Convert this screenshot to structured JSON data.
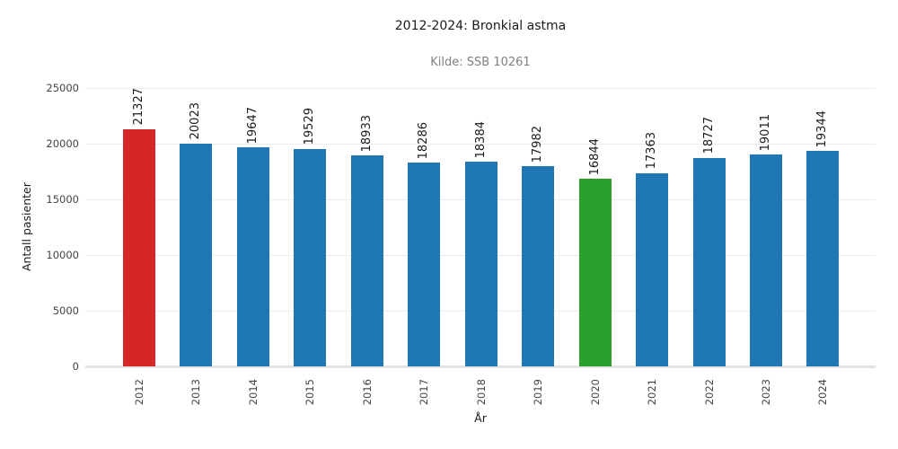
{
  "chart_data": {
    "type": "bar",
    "title": "2012-2024: Bronkial astma",
    "subtitle": "Kilde: SSB 10261",
    "xlabel": "År",
    "ylabel": "Antall pasienter",
    "categories": [
      "2012",
      "2013",
      "2014",
      "2015",
      "2016",
      "2017",
      "2018",
      "2019",
      "2020",
      "2021",
      "2022",
      "2023",
      "2024"
    ],
    "values": [
      21327,
      20023,
      19647,
      19529,
      18933,
      18286,
      18384,
      17982,
      16844,
      17363,
      18727,
      19011,
      19344
    ],
    "bar_colors": [
      "#d62728",
      "#1f77b4",
      "#1f77b4",
      "#1f77b4",
      "#1f77b4",
      "#1f77b4",
      "#1f77b4",
      "#1f77b4",
      "#2ca02c",
      "#1f77b4",
      "#1f77b4",
      "#1f77b4",
      "#1f77b4"
    ],
    "colors": {
      "default_bar": "#1f77b4",
      "highlight_2012": "#d62728",
      "highlight_2020": "#2ca02c",
      "gridline": "#ececec",
      "axis_line": "#e2e2e2"
    },
    "ylim": [
      0,
      25000
    ],
    "yticks": [
      0,
      5000,
      10000,
      15000,
      20000,
      25000
    ],
    "grid": true,
    "legend": "none",
    "value_labels_rotation_deg": 90,
    "xtick_rotation_deg": 90
  }
}
